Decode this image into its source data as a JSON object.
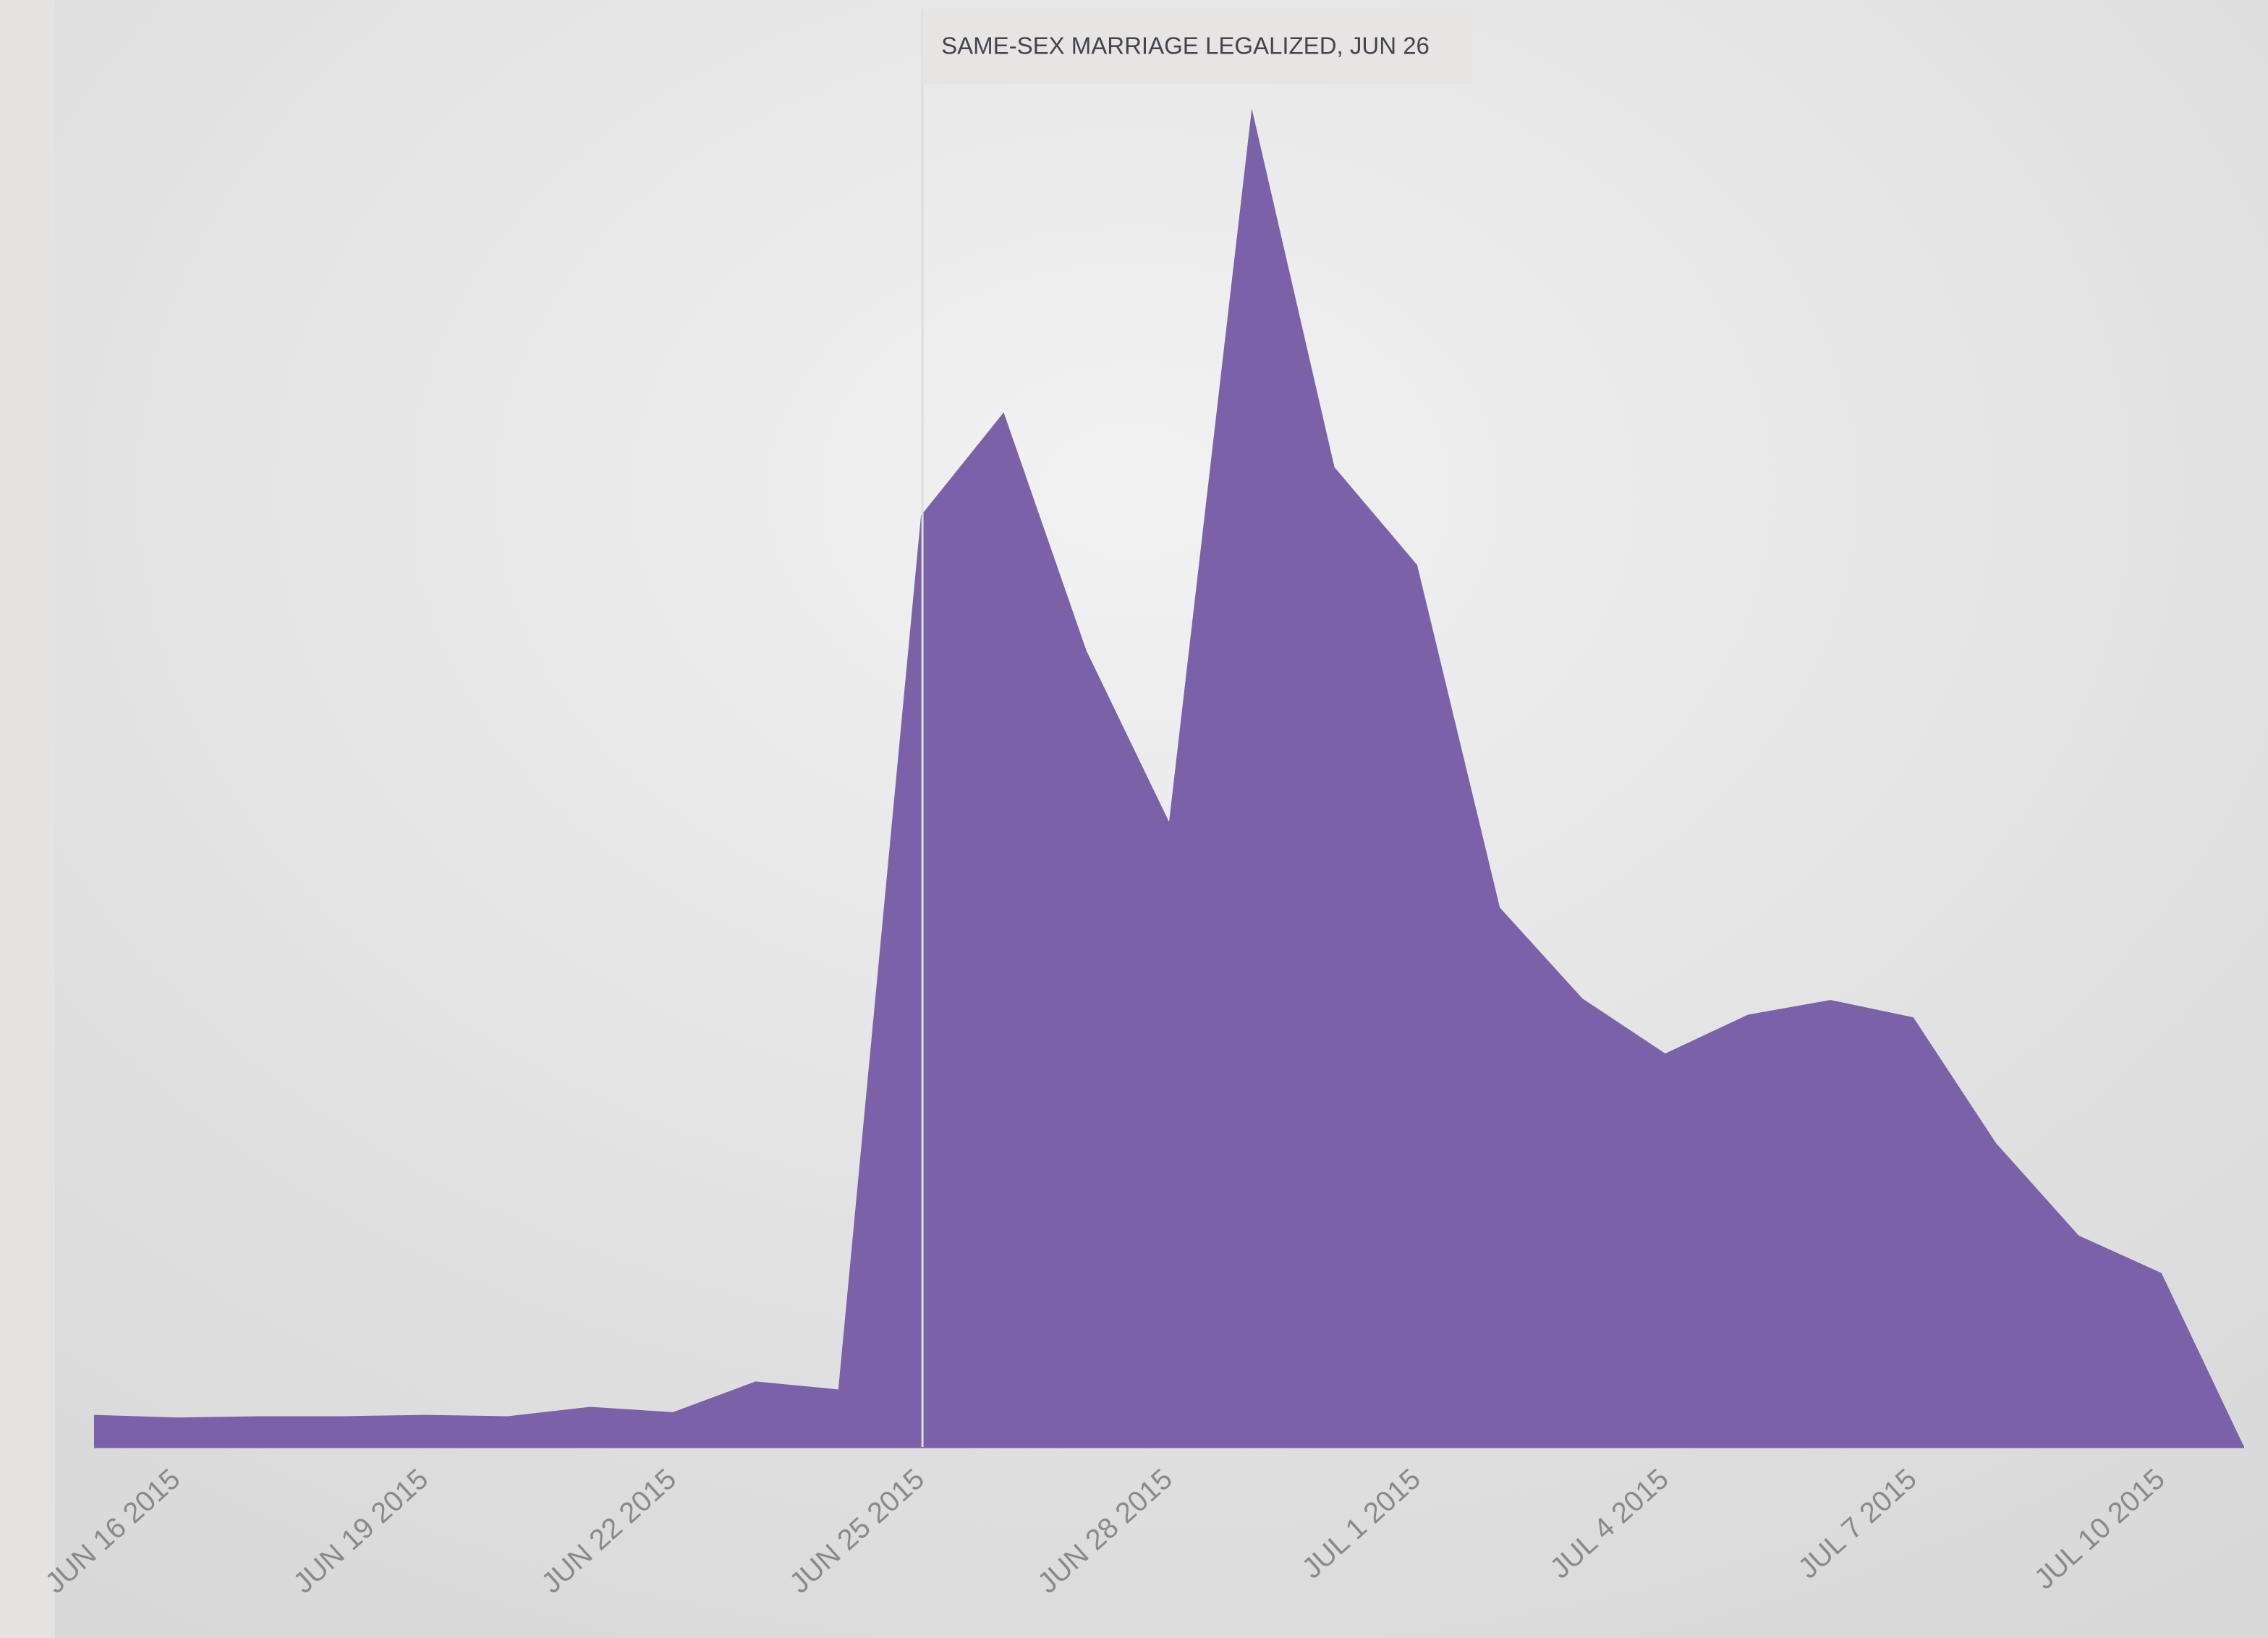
{
  "chart_data": {
    "type": "area",
    "annotation": "SAME-SEX MARRIAGE LEGALIZED, JUN 26",
    "categories": [
      null,
      "JUN 16 2015",
      null,
      null,
      "JUN 19 2015",
      null,
      null,
      "JUN 22 2015",
      null,
      null,
      "JUN 25 2015",
      null,
      null,
      "JUN 28 2015",
      null,
      null,
      "JUL 1 2015",
      null,
      null,
      "JUL 4 2015",
      null,
      null,
      "JUL 7 2015",
      null,
      null,
      "JUL 10 2015",
      null
    ],
    "values": [
      2.4,
      2.2,
      2.3,
      2.3,
      2.4,
      2.3,
      3.0,
      2.6,
      4.9,
      4.3,
      69.6,
      77.3,
      59.5,
      46.7,
      100,
      73.2,
      65.9,
      40.3,
      33.5,
      29.4,
      32.3,
      33.4,
      32.1,
      22.7,
      15.8,
      13.0,
      0
    ],
    "color": "#7b62a8",
    "ylim": [
      0,
      100
    ]
  }
}
